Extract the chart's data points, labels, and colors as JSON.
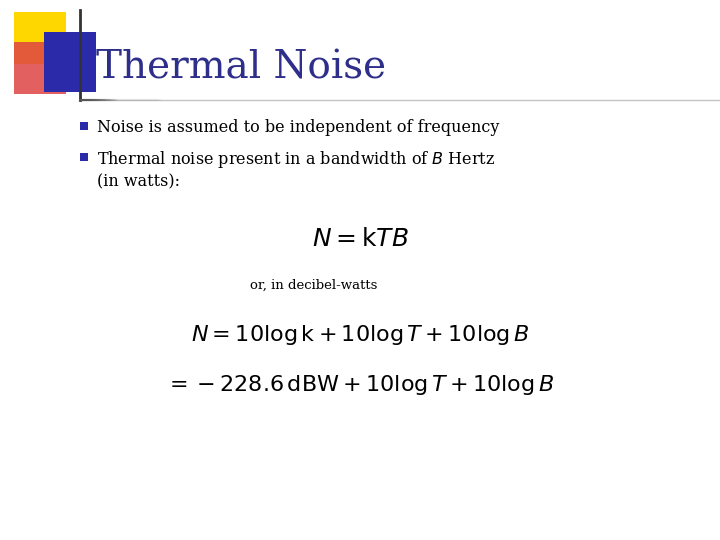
{
  "title": "Thermal Noise",
  "title_color": "#2E2E8B",
  "title_fontsize": 28,
  "bg_color": "#FFFFFF",
  "bullet_marker_color": "#2B2BAA",
  "bullet1": "Noise is assumed to be independent of frequency",
  "text_color": "#000000",
  "line_color": "#333333",
  "accent_yellow": "#FFD700",
  "accent_red": "#DD4444",
  "accent_blue": "#2B2BAA",
  "or_text": "or, in decibel-watts",
  "formula_color": "#000000"
}
